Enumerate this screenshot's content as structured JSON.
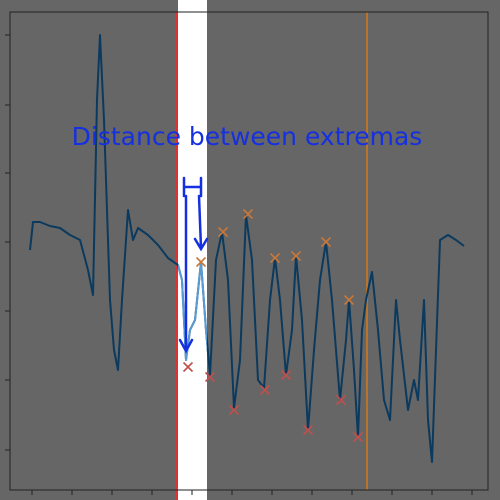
{
  "chart_data": {
    "type": "line",
    "annotation": "Distance between extremas",
    "xlim": [
      0,
      478
    ],
    "ylim": [
      0,
      478
    ],
    "xticks": [
      22,
      62,
      102,
      142,
      182,
      222,
      262,
      302,
      342,
      382,
      422,
      462
    ],
    "yticks": [
      40,
      110,
      179,
      248,
      317,
      385,
      455
    ],
    "x": [
      20,
      23,
      30,
      40,
      50,
      60,
      70,
      78,
      83,
      87,
      90,
      94,
      100,
      104,
      108,
      112,
      118,
      123,
      128,
      138,
      148,
      158,
      168,
      172,
      176,
      180,
      185,
      191,
      196,
      200,
      206,
      212,
      218,
      224,
      230,
      236,
      242,
      248,
      254,
      260,
      265,
      270,
      276,
      282,
      286,
      292,
      298,
      304,
      310,
      316,
      322,
      330,
      336,
      339,
      344,
      348,
      352,
      356,
      362,
      368,
      374,
      380,
      386,
      390,
      398,
      404,
      408,
      414,
      418,
      422,
      426,
      430,
      438,
      446,
      454
    ],
    "series": [
      {
        "color": "#0b3a5e",
        "highlight_color": "#5b9bd5",
        "values": [
          240,
          268,
          268,
          264,
          262,
          255,
          250,
          220,
          195,
          390,
          455,
          370,
          190,
          140,
          120,
          190,
          280,
          250,
          262,
          255,
          245,
          232,
          225,
          210,
          130,
          160,
          170,
          228,
          160,
          115,
          230,
          258,
          210,
          82,
          130,
          275,
          230,
          110,
          102,
          190,
          232,
          190,
          115,
          160,
          234,
          170,
          60,
          140,
          210,
          248,
          190,
          90,
          150,
          190,
          120,
          53,
          160,
          190,
          218,
          160,
          90,
          70,
          190,
          150,
          80,
          110,
          90,
          190,
          70,
          28,
          140,
          250,
          255,
          250,
          244
        ]
      }
    ],
    "maxima": {
      "color": "#c8783a",
      "x": [
        191,
        213,
        238,
        265,
        286,
        316,
        339
      ],
      "values": [
        228,
        258,
        276,
        232,
        234,
        248,
        190
      ]
    },
    "minima": {
      "color": "#c0504d",
      "x": [
        178,
        200,
        224,
        255,
        276,
        298,
        331,
        348
      ],
      "values": [
        123,
        113,
        80,
        100,
        115,
        60,
        90,
        53
      ]
    },
    "highlight": [
      168,
      197
    ],
    "vlines": [
      {
        "x": 167,
        "color": "#e03030"
      },
      {
        "x": 357,
        "color": "#b8742a"
      }
    ]
  }
}
